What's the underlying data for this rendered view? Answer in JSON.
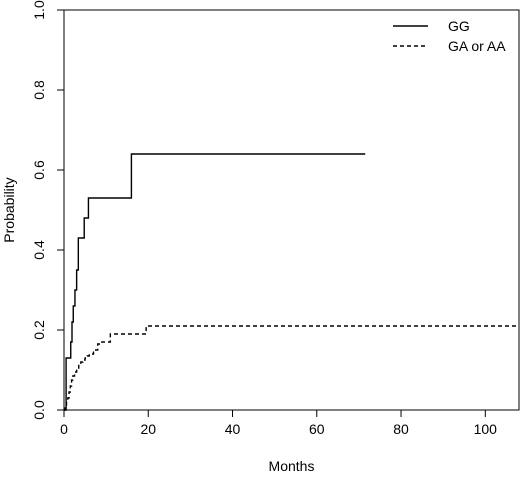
{
  "chart_data": {
    "type": "line",
    "title": "",
    "xlabel": "Months",
    "ylabel": "Probability",
    "xlim": [
      0,
      108
    ],
    "ylim": [
      0,
      1
    ],
    "xticks": [
      0,
      20,
      40,
      60,
      80,
      100
    ],
    "yticks": [
      0.0,
      0.2,
      0.4,
      0.6,
      0.8,
      1.0
    ],
    "xtick_labels": [
      "0",
      "20",
      "40",
      "60",
      "80",
      "100"
    ],
    "ytick_labels": [
      "0.0",
      "0.2",
      "0.4",
      "0.6",
      "0.8",
      "1.0"
    ],
    "grid": false,
    "legend_position": "top-right",
    "step": true,
    "series": [
      {
        "name": "GG",
        "line_style": "solid",
        "color": "#000000",
        "x": [
          0,
          0.5,
          1.6,
          1.9,
          2.2,
          2.6,
          3.0,
          3.4,
          4.8,
          5.8,
          6.8,
          16.0,
          71.5
        ],
        "y": [
          0,
          0.13,
          0.17,
          0.22,
          0.26,
          0.3,
          0.35,
          0.43,
          0.48,
          0.53,
          0.53,
          0.64,
          0.64
        ]
      },
      {
        "name": "GA or AA",
        "line_style": "dashed",
        "color": "#000000",
        "x": [
          0,
          0.3,
          0.6,
          0.9,
          1.2,
          1.5,
          1.8,
          2.1,
          2.5,
          3.0,
          3.5,
          4.0,
          4.5,
          5.0,
          5.5,
          6.0,
          7.0,
          8.0,
          9.0,
          11.0,
          19.5,
          108
        ],
        "y": [
          0,
          0.01,
          0.02,
          0.03,
          0.045,
          0.06,
          0.075,
          0.085,
          0.095,
          0.105,
          0.115,
          0.12,
          0.125,
          0.13,
          0.135,
          0.14,
          0.15,
          0.165,
          0.17,
          0.19,
          0.21,
          0.21
        ]
      }
    ]
  }
}
